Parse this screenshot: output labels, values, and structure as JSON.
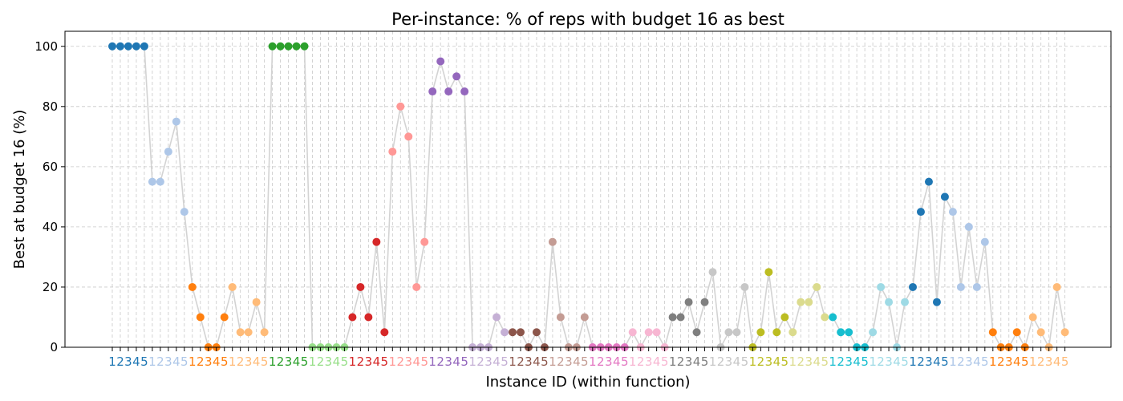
{
  "chart_data": {
    "type": "scatter",
    "title": "Per-instance: % of reps with budget 16 as best",
    "xlabel": "Instance ID (within function)",
    "ylabel": "Best at budget 16 (%)",
    "ylim": [
      0,
      105
    ],
    "yticks": [
      0,
      20,
      40,
      60,
      80,
      100
    ],
    "grid": true,
    "x_tick_labels": [
      "1",
      "2",
      "3",
      "4",
      "5",
      "1",
      "2",
      "3",
      "4",
      "5",
      "1",
      "2",
      "3",
      "4",
      "5",
      "1",
      "2",
      "3",
      "4",
      "5",
      "1",
      "2",
      "3",
      "4",
      "5",
      "1",
      "2",
      "3",
      "4",
      "5",
      "1",
      "2",
      "3",
      "4",
      "5",
      "1",
      "2",
      "3",
      "4",
      "5",
      "1",
      "2",
      "3",
      "4",
      "5",
      "1",
      "2",
      "3",
      "4",
      "5",
      "1",
      "2",
      "3",
      "4",
      "5",
      "1",
      "2",
      "3",
      "4",
      "5",
      "1",
      "2",
      "3",
      "4",
      "5",
      "1",
      "2",
      "3",
      "4",
      "5",
      "1",
      "2",
      "3",
      "4",
      "5",
      "1",
      "2",
      "3",
      "4",
      "5",
      "1",
      "2",
      "3",
      "4",
      "5",
      "1",
      "2",
      "3",
      "4",
      "5",
      "1",
      "2",
      "3",
      "4",
      "5",
      "1",
      "2",
      "3",
      "4",
      "5",
      "1",
      "2",
      "3",
      "4",
      "5",
      "1",
      "2",
      "3",
      "4",
      "5",
      "1",
      "2",
      "3",
      "4",
      "5",
      "1",
      "2",
      "3",
      "4",
      "5"
    ],
    "colors": [
      "#1f77b4",
      "#aec7e8",
      "#ff7f0e",
      "#ffbb78",
      "#2ca02c",
      "#98df8a",
      "#d62728",
      "#ff9896",
      "#9467bd",
      "#c5b0d5",
      "#8c564b",
      "#c49c94",
      "#e377c2",
      "#f7b6d2",
      "#7f7f7f",
      "#c7c7c7",
      "#bcbd22",
      "#dbdb8d",
      "#17becf",
      "#9edae5",
      "#1f77b4",
      "#aec7e8",
      "#ff7f0e",
      "#ffbb78"
    ],
    "connector_color": "#d3d3d3",
    "values": [
      100,
      100,
      100,
      100,
      100,
      55,
      55,
      65,
      75,
      45,
      20,
      10,
      0,
      0,
      10,
      20,
      5,
      5,
      15,
      5,
      100,
      100,
      100,
      100,
      100,
      0,
      0,
      0,
      0,
      0,
      10,
      20,
      10,
      35,
      5,
      65,
      80,
      70,
      20,
      35,
      85,
      95,
      85,
      90,
      85,
      0,
      0,
      0,
      10,
      5,
      5,
      5,
      0,
      5,
      0,
      35,
      10,
      0,
      0,
      10,
      0,
      0,
      0,
      0,
      0,
      5,
      0,
      5,
      5,
      0,
      10,
      10,
      15,
      5,
      15,
      25,
      0,
      5,
      5,
      20,
      0,
      5,
      25,
      5,
      10,
      5,
      15,
      15,
      20,
      10,
      10,
      5,
      5,
      0,
      0,
      5,
      20,
      15,
      0,
      15,
      20,
      45,
      55,
      15,
      50,
      45,
      20,
      40,
      20,
      35,
      5,
      0,
      0,
      5,
      0,
      10,
      5,
      0,
      20,
      5
    ]
  }
}
